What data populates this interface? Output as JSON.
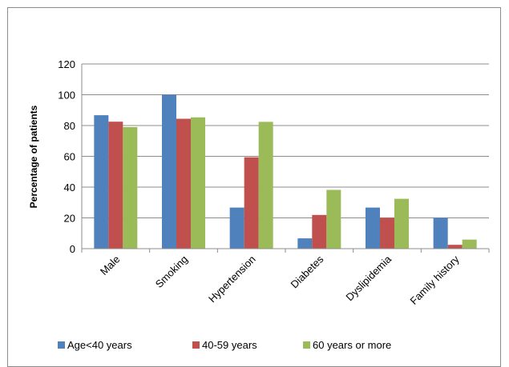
{
  "chart_data": {
    "type": "bar",
    "title": "",
    "xlabel": "",
    "ylabel": "Percentage of patients",
    "ylim": [
      0,
      120
    ],
    "yticks": [
      0,
      20,
      40,
      60,
      80,
      100,
      120
    ],
    "grid": true,
    "legend_position": "bottom",
    "categories": [
      "Male",
      "Smoking",
      "Hypertension",
      "Diabetes",
      "Dyslipidemia",
      "Family history"
    ],
    "series": [
      {
        "name": "Age<40 years",
        "color": "#4f81bd",
        "values": [
          86.7,
          100,
          26.7,
          6.7,
          26.7,
          20
        ]
      },
      {
        "name": "40-59 years",
        "color": "#c0504d",
        "values": [
          82.5,
          84.4,
          59.4,
          21.9,
          20,
          2.5
        ]
      },
      {
        "name": "60 years or more",
        "color": "#9bbb59",
        "values": [
          79,
          85.3,
          82.4,
          38.2,
          32.4,
          5.9
        ]
      }
    ]
  }
}
